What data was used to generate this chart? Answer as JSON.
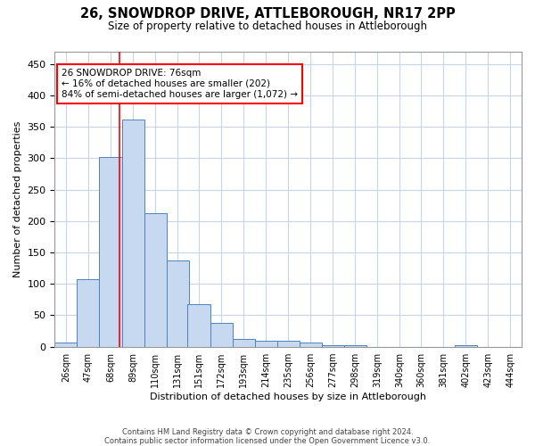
{
  "title": "26, SNOWDROP DRIVE, ATTLEBOROUGH, NR17 2PP",
  "subtitle": "Size of property relative to detached houses in Attleborough",
  "xlabel": "Distribution of detached houses by size in Attleborough",
  "ylabel": "Number of detached properties",
  "footer_line1": "Contains HM Land Registry data © Crown copyright and database right 2024.",
  "footer_line2": "Contains public sector information licensed under the Open Government Licence v3.0.",
  "bin_labels": [
    "26sqm",
    "47sqm",
    "68sqm",
    "89sqm",
    "110sqm",
    "131sqm",
    "151sqm",
    "172sqm",
    "193sqm",
    "214sqm",
    "235sqm",
    "256sqm",
    "277sqm",
    "298sqm",
    "319sqm",
    "340sqm",
    "360sqm",
    "381sqm",
    "402sqm",
    "423sqm",
    "444sqm"
  ],
  "bar_values": [
    7,
    108,
    302,
    362,
    213,
    137,
    68,
    38,
    13,
    10,
    9,
    6,
    3,
    2,
    0,
    0,
    0,
    0,
    2,
    0,
    0
  ],
  "bar_color": "#c6d9f0",
  "bar_edge_color": "#4f81bd",
  "property_size": 76,
  "pct_smaller": 16,
  "n_smaller": 202,
  "pct_larger_semi": 84,
  "n_larger_semi": 1072,
  "vline_color": "#ff0000",
  "annotation_box_color": "#ff0000",
  "ylim": [
    0,
    470
  ],
  "yticks": [
    0,
    50,
    100,
    150,
    200,
    250,
    300,
    350,
    400,
    450
  ],
  "background_color": "#ffffff",
  "grid_color": "#c8d4e8"
}
